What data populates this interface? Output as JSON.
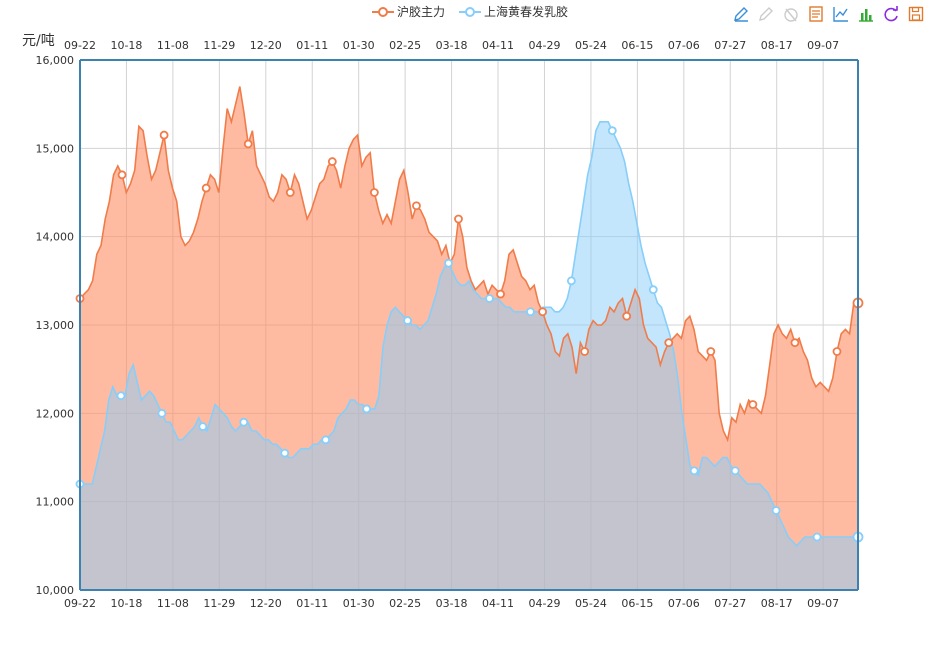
{
  "legend": {
    "items": [
      {
        "label": "沪胶主力",
        "color": "#f07c4a"
      },
      {
        "label": "上海黄春发乳胶",
        "color": "#87cefa"
      }
    ]
  },
  "toolbox": {
    "icons": [
      "edit-pen-icon",
      "eraser-icon",
      "reset-icon",
      "data-view-icon",
      "line-chart-icon",
      "bar-chart-icon",
      "restore-icon",
      "save-image-icon"
    ]
  },
  "chart_data": {
    "type": "area",
    "title": "",
    "ylabel": "元/吨",
    "ylim": [
      10000,
      16000
    ],
    "yticks": [
      10000,
      11000,
      12000,
      13000,
      14000,
      15000,
      16000
    ],
    "ytick_labels": [
      "10,000",
      "11,000",
      "12,000",
      "13,000",
      "14,000",
      "15,000",
      "16,000"
    ],
    "xtick_labels": [
      "09-22",
      "10-18",
      "11-08",
      "11-29",
      "12-20",
      "01-11",
      "01-30",
      "02-25",
      "03-18",
      "04-11",
      "04-29",
      "05-24",
      "06-15",
      "07-06",
      "07-27",
      "08-17",
      "09-07"
    ],
    "grid": true,
    "legend_position": "top-center",
    "series": [
      {
        "name": "沪胶主力",
        "color": "#f07c4a",
        "fill": "rgba(255,141,100,0.6)",
        "values": [
          13300,
          13350,
          13400,
          13500,
          13800,
          13900,
          14200,
          14400,
          14700,
          14800,
          14700,
          14500,
          14600,
          14750,
          15250,
          15200,
          14900,
          14650,
          14750,
          14950,
          15150,
          14750,
          14550,
          14400,
          14000,
          13900,
          13950,
          14050,
          14200,
          14400,
          14550,
          14700,
          14650,
          14500,
          15000,
          15450,
          15300,
          15500,
          15700,
          15400,
          15050,
          15200,
          14800,
          14700,
          14600,
          14450,
          14400,
          14500,
          14700,
          14650,
          14500,
          14700,
          14600,
          14400,
          14200,
          14300,
          14450,
          14600,
          14650,
          14800,
          14850,
          14750,
          14550,
          14800,
          15000,
          15100,
          15150,
          14800,
          14900,
          14950,
          14500,
          14300,
          14150,
          14250,
          14150,
          14400,
          14650,
          14750,
          14500,
          14200,
          14350,
          14300,
          14200,
          14050,
          14000,
          13950,
          13800,
          13900,
          13700,
          13800,
          14200,
          14000,
          13650,
          13500,
          13400,
          13450,
          13500,
          13350,
          13450,
          13400,
          13350,
          13500,
          13800,
          13850,
          13700,
          13550,
          13500,
          13400,
          13450,
          13250,
          13150,
          13000,
          12900,
          12700,
          12650,
          12850,
          12900,
          12750,
          12450,
          12800,
          12700,
          12950,
          13050,
          13000,
          13000,
          13050,
          13200,
          13150,
          13250,
          13300,
          13100,
          13250,
          13400,
          13300,
          13000,
          12850,
          12800,
          12750,
          12550,
          12700,
          12800,
          12850,
          12900,
          12850,
          13050,
          13100,
          12950,
          12700,
          12650,
          12600,
          12700,
          12600,
          12000,
          11800,
          11700,
          11950,
          11900,
          12100,
          12000,
          12150,
          12100,
          12050,
          12000,
          12200,
          12550,
          12900,
          13000,
          12900,
          12850,
          12950,
          12800,
          12850,
          12700,
          12600,
          12400,
          12300,
          12350,
          12300,
          12250,
          12400,
          12700,
          12900,
          12950,
          12900,
          13250,
          13250
        ]
      },
      {
        "name": "上海黄春发乳胶",
        "color": "#87cefa",
        "fill": "rgba(135,206,250,0.5)",
        "values": [
          11200,
          11200,
          11200,
          11200,
          11400,
          11600,
          11800,
          12150,
          12300,
          12200,
          12200,
          12200,
          12450,
          12550,
          12350,
          12150,
          12200,
          12250,
          12200,
          12100,
          12000,
          11900,
          11900,
          11800,
          11700,
          11700,
          11750,
          11800,
          11850,
          11950,
          11850,
          11800,
          11950,
          12100,
          12050,
          12000,
          11950,
          11850,
          11800,
          11850,
          11900,
          11900,
          11800,
          11800,
          11750,
          11700,
          11700,
          11650,
          11650,
          11600,
          11550,
          11500,
          11500,
          11550,
          11600,
          11600,
          11600,
          11650,
          11650,
          11700,
          11700,
          11750,
          11800,
          11950,
          12000,
          12050,
          12150,
          12150,
          12100,
          12100,
          12050,
          12050,
          12050,
          12200,
          12750,
          13000,
          13150,
          13200,
          13150,
          13100,
          13050,
          13000,
          13000,
          12950,
          13000,
          13050,
          13200,
          13350,
          13550,
          13650,
          13700,
          13600,
          13500,
          13450,
          13450,
          13500,
          13400,
          13350,
          13300,
          13300,
          13300,
          13300,
          13300,
          13250,
          13200,
          13200,
          13150,
          13150,
          13150,
          13150,
          13150,
          13150,
          13150,
          13200,
          13200,
          13200,
          13150,
          13150,
          13200,
          13300,
          13500,
          13800,
          14100,
          14400,
          14700,
          14900,
          15200,
          15300,
          15300,
          15300,
          15200,
          15100,
          15000,
          14850,
          14600,
          14400,
          14150,
          13900,
          13700,
          13550,
          13400,
          13250,
          13200,
          13050,
          12900,
          12700,
          12400,
          12000,
          11700,
          11400,
          11350,
          11300,
          11500,
          11500,
          11450,
          11400,
          11450,
          11500,
          11500,
          11400,
          11350,
          11300,
          11250,
          11200,
          11200,
          11200,
          11200,
          11150,
          11100,
          11000,
          10900,
          10800,
          10700,
          10600,
          10550,
          10500,
          10550,
          10600,
          10600,
          10600,
          10600,
          10600,
          10600,
          10600,
          10600,
          10600,
          10600,
          10600,
          10600,
          10600,
          10600
        ]
      }
    ]
  }
}
